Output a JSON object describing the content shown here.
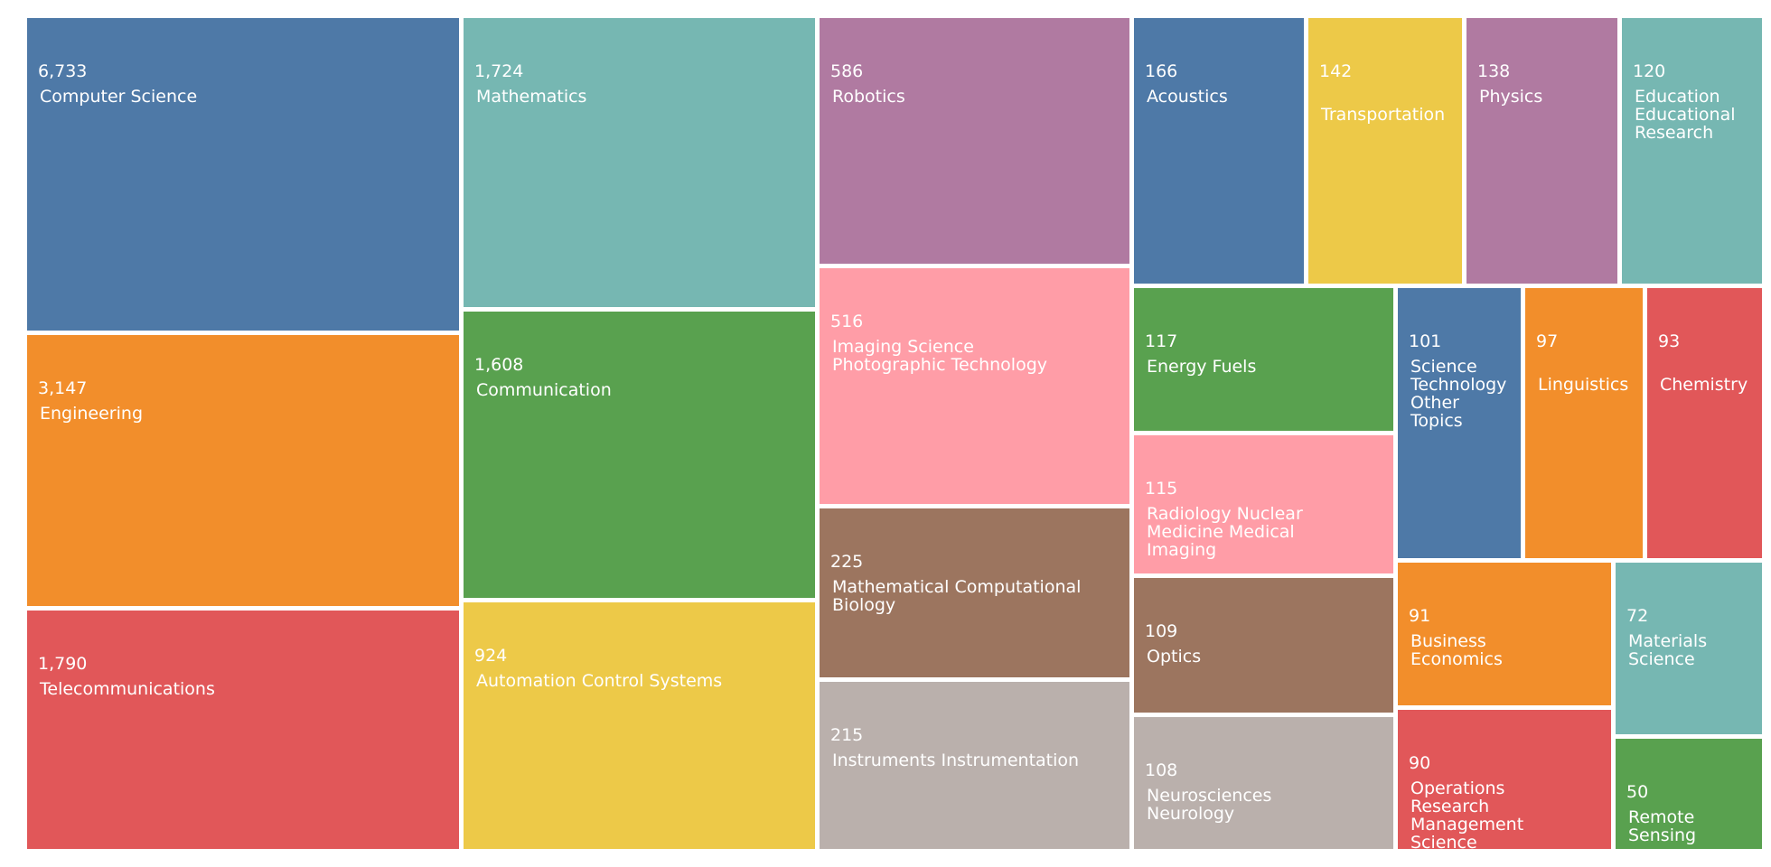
{
  "chart_data": {
    "type": "treemap",
    "title": "",
    "items": [
      {
        "label": "Computer Science",
        "lines": [
          "Computer Science"
        ],
        "value": 6733,
        "display_value": "6,733",
        "color": "#4e79a7"
      },
      {
        "label": "Engineering",
        "lines": [
          "Engineering"
        ],
        "value": 3147,
        "display_value": "3,147",
        "color": "#f28e2b"
      },
      {
        "label": "Telecommunications",
        "lines": [
          "Telecommunications"
        ],
        "value": 1790,
        "display_value": "1,790",
        "color": "#e15759"
      },
      {
        "label": "Mathematics",
        "lines": [
          "Mathematics"
        ],
        "value": 1724,
        "display_value": "1,724",
        "color": "#76b7b2"
      },
      {
        "label": "Communication",
        "lines": [
          "Communication"
        ],
        "value": 1608,
        "display_value": "1,608",
        "color": "#59a14f"
      },
      {
        "label": "Automation Control Systems",
        "lines": [
          "Automation Control Systems"
        ],
        "value": 924,
        "display_value": "924",
        "color": "#edc948"
      },
      {
        "label": "Robotics",
        "lines": [
          "Robotics"
        ],
        "value": 586,
        "display_value": "586",
        "color": "#b07aa1"
      },
      {
        "label": "Imaging Science Photographic Technology",
        "lines": [
          "Imaging Science",
          "Photographic Technology"
        ],
        "value": 516,
        "display_value": "516",
        "color": "#ff9da7"
      },
      {
        "label": "Mathematical Computational Biology",
        "lines": [
          "Mathematical Computational",
          "Biology"
        ],
        "value": 225,
        "display_value": "225",
        "color": "#9c755f"
      },
      {
        "label": "Instruments Instrumentation",
        "lines": [
          "Instruments Instrumentation"
        ],
        "value": 215,
        "display_value": "215",
        "color": "#bab0ac"
      },
      {
        "label": "Acoustics",
        "lines": [
          "Acoustics"
        ],
        "value": 166,
        "display_value": "166",
        "color": "#4e79a7"
      },
      {
        "label": "Transportation",
        "lines": [
          "",
          "Transportation"
        ],
        "value": 142,
        "display_value": "142",
        "color": "#edc948"
      },
      {
        "label": "Physics",
        "lines": [
          "Physics"
        ],
        "value": 138,
        "display_value": "138",
        "color": "#b07aa1"
      },
      {
        "label": "Education Educational Research",
        "lines": [
          "Education",
          "Educational",
          "Research"
        ],
        "value": 120,
        "display_value": "120",
        "color": "#76b7b2"
      },
      {
        "label": "Energy Fuels",
        "lines": [
          "Energy Fuels"
        ],
        "value": 117,
        "display_value": "117",
        "color": "#59a14f"
      },
      {
        "label": "Radiology Nuclear Medicine Medical Imaging",
        "lines": [
          "Radiology Nuclear",
          "Medicine Medical",
          "Imaging"
        ],
        "value": 115,
        "display_value": "115",
        "color": "#ff9da7"
      },
      {
        "label": "Optics",
        "lines": [
          "Optics"
        ],
        "value": 109,
        "display_value": "109",
        "color": "#9c755f"
      },
      {
        "label": "Neurosciences Neurology",
        "lines": [
          "Neurosciences",
          "Neurology"
        ],
        "value": 108,
        "display_value": "108",
        "color": "#bab0ac"
      },
      {
        "label": "Science Technology Other Topics",
        "lines": [
          "Science",
          "Technology",
          "Other",
          "Topics"
        ],
        "value": 101,
        "display_value": "101",
        "color": "#4e79a7"
      },
      {
        "label": "Linguistics",
        "lines": [
          "",
          "Linguistics"
        ],
        "value": 97,
        "display_value": "97",
        "color": "#f28e2b"
      },
      {
        "label": "Chemistry",
        "lines": [
          "",
          "Chemistry"
        ],
        "value": 93,
        "display_value": "93",
        "color": "#e15759"
      },
      {
        "label": "Business Economics",
        "lines": [
          "Business",
          "Economics"
        ],
        "value": 91,
        "display_value": "91",
        "color": "#f28e2b"
      },
      {
        "label": "Materials Science",
        "lines": [
          "Materials",
          "Science"
        ],
        "value": 72,
        "display_value": "72",
        "color": "#76b7b2"
      },
      {
        "label": "Operations Research Management Science",
        "lines": [
          "Operations",
          "Research",
          "Management",
          "Science"
        ],
        "value": 90,
        "display_value": "90",
        "color": "#e15759"
      },
      {
        "label": "Remote Sensing",
        "lines": [
          "Remote",
          "Sensing"
        ],
        "value": 50,
        "display_value": "50",
        "color": "#59a14f"
      }
    ]
  }
}
